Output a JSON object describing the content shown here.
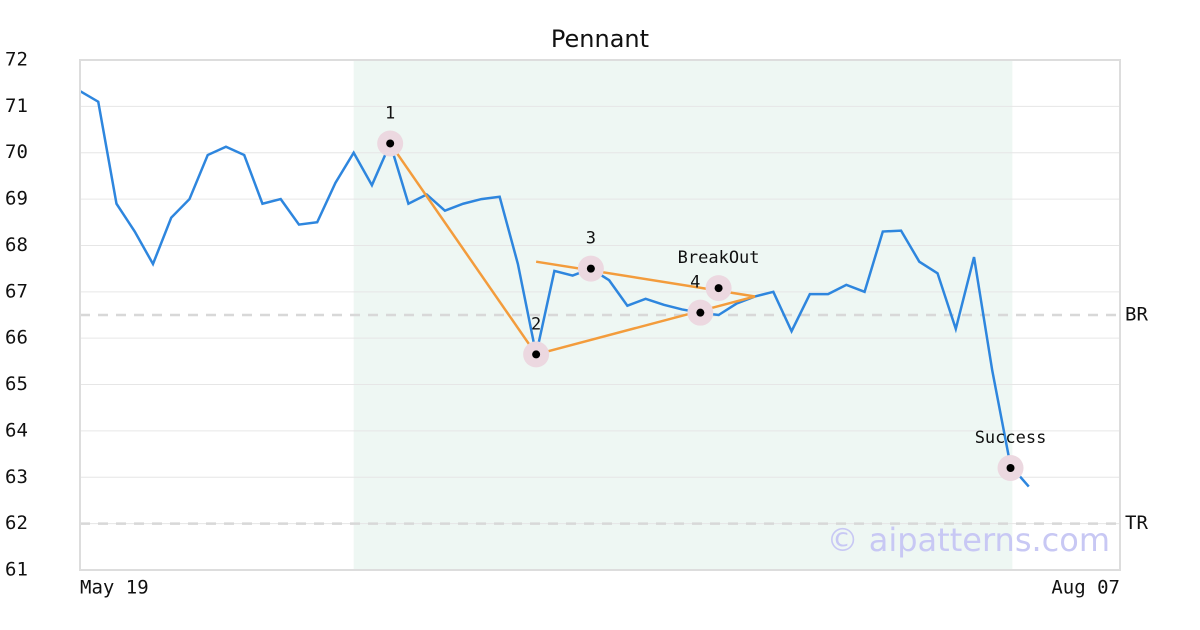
{
  "chart_data": {
    "type": "line",
    "title": "Pennant",
    "x": [
      0,
      1,
      2,
      3,
      4,
      5,
      6,
      7,
      8,
      9,
      10,
      11,
      12,
      13,
      14,
      15,
      16,
      17,
      18,
      19,
      20,
      21,
      22,
      23,
      24,
      25,
      26,
      27,
      28,
      29,
      30,
      31,
      32,
      33,
      34,
      35,
      36,
      37,
      38,
      39,
      40,
      41,
      42,
      43,
      44,
      45,
      46,
      47,
      48,
      49,
      50,
      51,
      52
    ],
    "series": [
      {
        "color": "#2e86de",
        "values": [
          71.33,
          71.1,
          68.9,
          68.3,
          67.6,
          68.6,
          69.0,
          69.95,
          70.13,
          69.95,
          68.9,
          69.0,
          68.45,
          68.5,
          69.35,
          70.0,
          69.3,
          70.2,
          68.9,
          69.1,
          68.75,
          68.9,
          69.0,
          69.05,
          67.6,
          65.65,
          67.45,
          67.35,
          67.5,
          67.25,
          66.7,
          66.85,
          66.72,
          66.62,
          66.55,
          66.5,
          66.75,
          66.9,
          67.0,
          66.15,
          66.95,
          66.95,
          67.15,
          67.0,
          68.3,
          68.32,
          67.65,
          67.4,
          66.2,
          67.75,
          65.3,
          63.25,
          62.8
        ]
      }
    ],
    "xlim": [
      0,
      57
    ],
    "xticks": [
      {
        "value": 0,
        "label": "May 19"
      },
      {
        "value": 57,
        "label": "Aug 07"
      }
    ],
    "ylim": [
      61,
      72
    ],
    "yticks": [
      61,
      62,
      63,
      64,
      65,
      66,
      67,
      68,
      69,
      70,
      71,
      72
    ],
    "grid": true,
    "shade": [
      15,
      51.1
    ],
    "points": [
      {
        "label": "1",
        "x": 17,
        "y": 70.2
      },
      {
        "label": "2",
        "x": 25,
        "y": 65.65
      },
      {
        "label": "3",
        "x": 28,
        "y": 67.5
      },
      {
        "label": "4",
        "x": 34,
        "y": 66.55
      },
      {
        "label": "BreakOut",
        "x": 35,
        "y": 67.08
      },
      {
        "label": "Success",
        "x": 51,
        "y": 63.2
      }
    ],
    "trendline_color": "#f39c3c",
    "trendlines": [
      [
        [
          17,
          70.2
        ],
        [
          25,
          65.65
        ]
      ],
      [
        [
          25,
          65.65
        ],
        [
          37,
          66.9
        ]
      ],
      [
        [
          25,
          67.65
        ],
        [
          37,
          66.9
        ]
      ]
    ],
    "levels": [
      {
        "label": "BR",
        "y": 66.5
      },
      {
        "label": "TR",
        "y": 62
      }
    ],
    "watermark": "© aipatterns.com"
  }
}
